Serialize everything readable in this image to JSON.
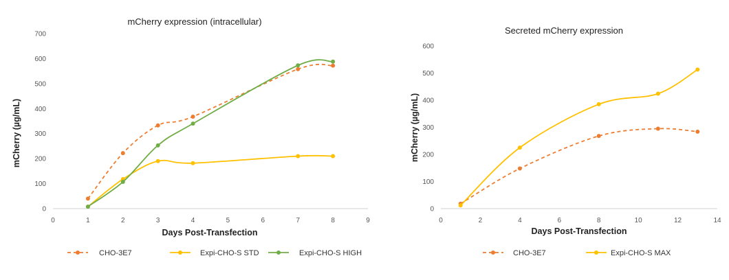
{
  "charts": [
    {
      "title": "mCherry expression (intracellular)",
      "xlabel": "Days Post-Transfection",
      "ylabel": "mCherry (µg/mL)"
    },
    {
      "title": "Secreted mCherry expression",
      "xlabel": "Days Post-Transfection",
      "ylabel": "mCherry (µg/mL)"
    }
  ],
  "chart_data": [
    {
      "type": "line",
      "title": "mCherry expression (intracellular)",
      "xlabel": "Days Post-Transfection",
      "ylabel": "mCherry (µg/mL)",
      "xlim": [
        0,
        9
      ],
      "ylim": [
        0,
        700
      ],
      "xticks": [
        0,
        1,
        2,
        3,
        4,
        5,
        6,
        7,
        8,
        9
      ],
      "yticks": [
        0,
        100,
        200,
        300,
        400,
        500,
        600,
        700
      ],
      "grid": false,
      "legend": "bottom",
      "series": [
        {
          "name": "CHO-3E7",
          "color": "#ED7D31",
          "dashed": true,
          "x": [
            1,
            2,
            3,
            4,
            7,
            8
          ],
          "y": [
            40,
            222,
            333,
            368,
            558,
            572
          ]
        },
        {
          "name": "Expi-CHO-S STD",
          "color": "#FFC000",
          "dashed": false,
          "x": [
            1,
            2,
            3,
            4,
            7,
            8
          ],
          "y": [
            8,
            118,
            190,
            182,
            210,
            210
          ]
        },
        {
          "name": "Expi-CHO-S HIGH",
          "color": "#70AD47",
          "dashed": false,
          "x": [
            1,
            2,
            3,
            4,
            7,
            8
          ],
          "y": [
            8,
            107,
            253,
            340,
            573,
            588
          ]
        }
      ]
    },
    {
      "type": "line",
      "title": "Secreted mCherry expression",
      "xlabel": "Days Post-Transfection",
      "ylabel": "mCherry (µg/mL)",
      "xlim": [
        0,
        14
      ],
      "ylim": [
        0,
        600
      ],
      "xticks": [
        0,
        2,
        4,
        6,
        8,
        10,
        12,
        14
      ],
      "yticks": [
        0,
        100,
        200,
        300,
        400,
        500,
        600
      ],
      "grid": false,
      "legend": "bottom",
      "series": [
        {
          "name": "CHO-3E7",
          "color": "#ED7D31",
          "dashed": true,
          "x": [
            1,
            4,
            8,
            11,
            13
          ],
          "y": [
            18,
            148,
            268,
            295,
            284
          ]
        },
        {
          "name": "Expi-CHO-S MAX",
          "color": "#FFC000",
          "dashed": false,
          "x": [
            1,
            4,
            8,
            11,
            13
          ],
          "y": [
            12,
            225,
            385,
            424,
            513
          ]
        }
      ]
    }
  ]
}
